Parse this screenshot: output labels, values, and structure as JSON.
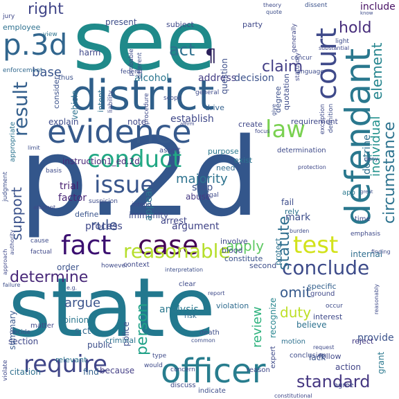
{
  "words": [
    {
      "text": "see",
      "color": "#1f8a8a"
    },
    {
      "text": "p.2d",
      "color": "#33568b"
    },
    {
      "text": "state",
      "color": "#22788e"
    },
    {
      "text": "district",
      "color": "#2f5f8a"
    },
    {
      "text": "evidence",
      "color": "#375a8c"
    },
    {
      "text": "fact",
      "color": "#3b0f70"
    },
    {
      "text": "case",
      "color": "#440154"
    },
    {
      "text": "officer",
      "color": "#287d8e"
    },
    {
      "text": "defendant",
      "color": "#2a788e"
    },
    {
      "text": "p.3d",
      "color": "#31668e"
    },
    {
      "text": "court",
      "color": "#3f4a8a"
    },
    {
      "text": "conduct",
      "color": "#22a884"
    },
    {
      "text": "issue",
      "color": "#39568c"
    },
    {
      "text": "law",
      "color": "#7ad151"
    },
    {
      "text": "test",
      "color": "#d2e21b"
    },
    {
      "text": "reasonable",
      "color": "#b5de2b"
    },
    {
      "text": "conclude",
      "color": "#3e4c8a"
    },
    {
      "text": "require",
      "color": "#404688"
    },
    {
      "text": "determine",
      "color": "#482878"
    },
    {
      "text": "result",
      "color": "#35608d"
    },
    {
      "text": "circumstance",
      "color": "#2c728e"
    },
    {
      "text": "standard",
      "color": "#453781"
    },
    {
      "text": "claim",
      "color": "#433e85"
    },
    {
      "text": "act",
      "color": "#2d708e"
    },
    {
      "text": "hold",
      "color": "#472d7b"
    },
    {
      "text": "right",
      "color": "#404588"
    },
    {
      "text": "statute",
      "color": "#2e6e8e"
    },
    {
      "text": "element",
      "color": "#25858e"
    },
    {
      "text": "individual",
      "color": "#21918c"
    },
    {
      "text": "support",
      "color": "#3b528b"
    },
    {
      "text": "person",
      "color": "#1fa187"
    },
    {
      "text": "review",
      "color": "#2db27d"
    },
    {
      "text": "apply",
      "color": "#5ec962"
    },
    {
      "text": "rule",
      "color": "#3b528b"
    },
    {
      "text": "majority",
      "color": "#2c728e"
    },
    {
      "text": "duty",
      "color": "#bddf26"
    },
    {
      "text": "omit",
      "color": "#375a8c"
    },
    {
      "text": "argue",
      "color": "#3a538b"
    },
    {
      "text": "base",
      "color": "#39558c"
    },
    {
      "text": "trial",
      "color": "#481f70"
    },
    {
      "text": "factor",
      "color": "#482576"
    },
    {
      "text": "include",
      "color": "#471164"
    },
    {
      "text": "alcohol",
      "color": "#2a768e"
    },
    {
      "text": "address",
      "color": "#433d84"
    },
    {
      "text": "decision",
      "color": "#3b518b"
    },
    {
      "text": "establish",
      "color": "#3f4889"
    },
    {
      "text": "arrest",
      "color": "#404588"
    },
    {
      "text": "argument",
      "color": "#414487"
    },
    {
      "text": "process",
      "color": "#3f4889"
    },
    {
      "text": "immunity",
      "color": "#3e4a89"
    },
    {
      "text": "stop",
      "color": "#3b528b"
    },
    {
      "text": "mark",
      "color": "#3d4e8a"
    },
    {
      "text": "employee",
      "color": "#2d708e"
    },
    {
      "text": "enforcement",
      "color": "#31688e"
    },
    {
      "text": "present",
      "color": "#3d4d8a"
    },
    {
      "text": "harm",
      "color": "#3f4889"
    },
    {
      "text": "explain",
      "color": "#3e4b8a"
    },
    {
      "text": "note",
      "color": "#3f4788"
    },
    {
      "text": "abuse",
      "color": "#453882"
    },
    {
      "text": "provide",
      "color": "#3b528b"
    },
    {
      "text": "recognize",
      "color": "#25848e"
    },
    {
      "text": "believe",
      "color": "#2c718e"
    },
    {
      "text": "analysis",
      "color": "#2a788e"
    },
    {
      "text": "police",
      "color": "#3d4e8a"
    },
    {
      "text": "section",
      "color": "#3f4889"
    },
    {
      "text": "summary",
      "color": "#38588c"
    },
    {
      "text": "s.ct",
      "color": "#31688e"
    },
    {
      "text": "public",
      "color": "#3c4f8a"
    },
    {
      "text": "criminal",
      "color": "#2c728e"
    },
    {
      "text": "because",
      "color": "#433e85"
    },
    {
      "text": "find",
      "color": "#34618d"
    },
    {
      "text": "citation",
      "color": "#2e6f8e"
    },
    {
      "text": "relevant",
      "color": "#2c738e"
    },
    {
      "text": "violation",
      "color": "#2f6b8e"
    },
    {
      "text": "interest",
      "color": "#3e4989"
    },
    {
      "text": "reject",
      "color": "#443b84"
    },
    {
      "text": "action",
      "color": "#414487"
    },
    {
      "text": "grant",
      "color": "#2a788e"
    },
    {
      "text": "follow",
      "color": "#3f4788"
    },
    {
      "text": "internal",
      "color": "#2e6d8e"
    },
    {
      "text": "fail",
      "color": "#3d4d8a"
    },
    {
      "text": "rely",
      "color": "#2c728e"
    },
    {
      "text": "doctrine",
      "color": "#2d708e"
    },
    {
      "text": "appeal",
      "color": "#2c738e"
    },
    {
      "text": "order",
      "color": "#3b528b"
    },
    {
      "text": "opinion",
      "color": "#2a768e"
    },
    {
      "text": "question",
      "color": "#3d4e8a"
    },
    {
      "text": "instruction1_ed.2d",
      "color": "#482878"
    },
    {
      "text": "quotation",
      "color": "#3e4c8a"
    },
    {
      "text": "requirement",
      "color": "#3f4889"
    },
    {
      "text": "define",
      "color": "#3a548c"
    },
    {
      "text": "intent",
      "color": "#2d708e"
    },
    {
      "text": "consider",
      "color": "#3b528b"
    },
    {
      "text": "drive",
      "color": "#34608d"
    },
    {
      "text": "thus",
      "color": "#3b518b"
    },
    {
      "text": "vehicle",
      "color": "#2c728e"
    },
    {
      "text": "subject",
      "color": "#3e4989"
    },
    {
      "text": "party",
      "color": "#3f4889"
    },
    {
      "text": "purpose",
      "color": "#2a788e"
    },
    {
      "text": "exist",
      "color": "#2b748e"
    },
    {
      "text": "need",
      "color": "#2f6b8e"
    },
    {
      "text": "degree",
      "color": "#3c4f8a"
    },
    {
      "text": "create",
      "color": "#3f4788"
    },
    {
      "text": "assert",
      "color": "#3e4a89"
    },
    {
      "text": "appropriate",
      "color": "#2c738e"
    },
    {
      "text": "context",
      "color": "#3f4889"
    },
    {
      "text": "second",
      "color": "#3d4e8a"
    },
    {
      "text": "blood",
      "color": "#3e4a89"
    },
    {
      "text": "constitute",
      "color": "#3b528b"
    },
    {
      "text": "involve",
      "color": "#3f4788"
    },
    {
      "text": "protect",
      "color": "#2c728e"
    },
    {
      "text": "specific",
      "color": "#34618d"
    },
    {
      "text": "ground",
      "color": "#3f4889"
    },
    {
      "text": "expert",
      "color": "#3e4a89"
    },
    {
      "text": "motion",
      "color": "#2d708e"
    },
    {
      "text": "death",
      "color": "#3d4d8a"
    },
    {
      "text": "risk",
      "color": "#2f6c8e"
    },
    {
      "text": "clear",
      "color": "#3e4a89"
    },
    {
      "text": "time",
      "color": "#3e4c8a"
    },
    {
      "text": "app",
      "color": "#2a788e"
    },
    {
      "text": "judgment",
      "color": "#3d4e8a"
    },
    {
      "text": "matter",
      "color": "#3f4788"
    },
    {
      "text": "decide",
      "color": "#3b528b"
    },
    {
      "text": "violate",
      "color": "#3f4889"
    },
    {
      "text": "discuss",
      "color": "#3e4a89"
    },
    {
      "text": "agree",
      "color": "#3e4989"
    },
    {
      "text": "indicate",
      "color": "#3d4e8a"
    },
    {
      "text": "lack",
      "color": "#3a548c"
    },
    {
      "text": "reason",
      "color": "#3f4889"
    },
    {
      "text": "would",
      "color": "#3e4a89"
    },
    {
      "text": "conclusion",
      "color": "#3e4c8a"
    },
    {
      "text": "generally",
      "color": "#3f4788"
    },
    {
      "text": "dissent",
      "color": "#3b528b"
    },
    {
      "text": "statutory",
      "color": "#3f4889"
    },
    {
      "text": "probable",
      "color": "#3e4a89"
    },
    {
      "text": "different",
      "color": "#3d4e8a"
    },
    {
      "text": "federal",
      "color": "#3e4c8a"
    },
    {
      "text": "liability",
      "color": "#3f4889"
    },
    {
      "text": "procedure",
      "color": "#3e4a89"
    },
    {
      "text": "scope",
      "color": "#3d4d8a"
    },
    {
      "text": "general",
      "color": "#3e4a89"
    },
    {
      "text": "language",
      "color": "#3e4c8a"
    },
    {
      "text": "view",
      "color": "#2c738e"
    },
    {
      "text": "jury",
      "color": "#3f4889"
    },
    {
      "text": "theory",
      "color": "#3e4a89"
    },
    {
      "text": "quote",
      "color": "#3d4e8a"
    },
    {
      "text": "light",
      "color": "#3e4c8a"
    },
    {
      "text": "substantial",
      "color": "#3f4889"
    },
    {
      "text": "basis",
      "color": "#3e4a89"
    },
    {
      "text": "limit",
      "color": "#3d4e8a"
    },
    {
      "text": "authority",
      "color": "#3e4989"
    },
    {
      "text": "cause",
      "color": "#3e4c8a"
    },
    {
      "text": "factual",
      "color": "#3f4889"
    },
    {
      "text": "however",
      "color": "#3e4a89"
    },
    {
      "text": "failure",
      "color": "#3d4e8a"
    },
    {
      "text": "exception",
      "color": "#3e4989"
    },
    {
      "text": "definition",
      "color": "#3e4c8a"
    },
    {
      "text": "focus",
      "color": "#3f4889"
    },
    {
      "text": "determination",
      "color": "#3e4a89"
    },
    {
      "text": "finding",
      "color": "#3e4c8a"
    },
    {
      "text": "emphasis",
      "color": "#3e4989"
    },
    {
      "text": "protection",
      "color": "#3f4889"
    },
    {
      "text": "concur",
      "color": "#3e4a89"
    },
    {
      "text": "suspicion",
      "color": "#3e4c8a"
    },
    {
      "text": "intend",
      "color": "#3f4889"
    },
    {
      "text": "legal",
      "color": "#3e4a89"
    },
    {
      "text": "deny",
      "color": "#3f4889"
    },
    {
      "text": "give",
      "color": "#3d4e8a"
    },
    {
      "text": "occur",
      "color": "#3e4c8a"
    },
    {
      "text": "concern",
      "color": "#3f4889"
    },
    {
      "text": "type",
      "color": "#3e4a89"
    },
    {
      "text": "attempt",
      "color": "#3e4989"
    },
    {
      "text": "approach",
      "color": "#3f4889"
    },
    {
      "text": "reasonably",
      "color": "#3e4a89"
    },
    {
      "text": "interpretation",
      "color": "#3d4e8a"
    },
    {
      "text": "burden",
      "color": "#3e4c8a"
    },
    {
      "text": "constitutional",
      "color": "#3f4889"
    },
    {
      "text": "request",
      "color": "#3e4a89"
    },
    {
      "text": "great",
      "color": "#3d4e8a"
    },
    {
      "text": "know",
      "color": "#3e4c8a"
    },
    {
      "text": "affirm",
      "color": "#3f4889"
    },
    {
      "text": "report",
      "color": "#3e4a89"
    },
    {
      "text": "common",
      "color": "#3d4e8a"
    },
    {
      "text": "e.g.",
      "color": "#3e4c8a"
    },
    {
      "text": "¶",
      "color": "#2a1f5a"
    }
  ]
}
